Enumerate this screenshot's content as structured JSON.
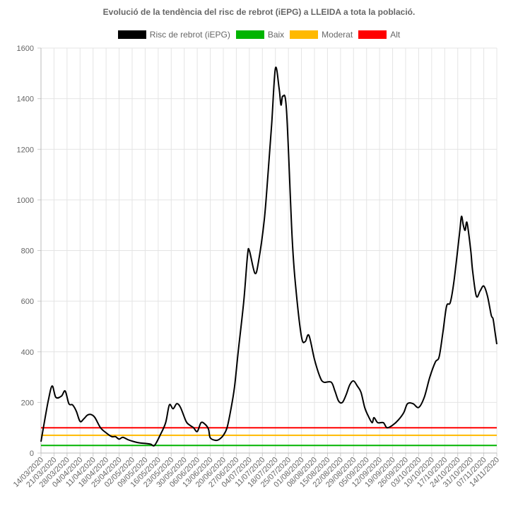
{
  "title": "Evolució de la tendència del risc de rebrot (iEPG) a LLEIDA a tota la població.",
  "legend": [
    {
      "label": "Risc de rebrot (iEPG)",
      "color": "#000000"
    },
    {
      "label": "Baix",
      "color": "#00b400"
    },
    {
      "label": "Moderat",
      "color": "#ffb900"
    },
    {
      "label": "Alt",
      "color": "#ff0000"
    }
  ],
  "chart_data": {
    "type": "line",
    "title": "Evolució de la tendència del risc de rebrot (iEPG) a LLEIDA a tota la població.",
    "xlabel": "",
    "ylabel": "",
    "ylim": [
      0,
      1600
    ],
    "yticks": [
      0,
      200,
      400,
      600,
      800,
      1000,
      1200,
      1400,
      1600
    ],
    "grid": true,
    "legend_position": "top",
    "x_range": [
      "14/03/2020",
      "14/11/2020"
    ],
    "xtick_labels": [
      "14/03/2020",
      "21/03/2020",
      "28/03/2020",
      "04/04/2020",
      "11/04/2020",
      "18/04/2020",
      "25/04/2020",
      "02/05/2020",
      "09/05/2020",
      "16/05/2020",
      "23/05/2020",
      "30/05/2020",
      "06/06/2020",
      "13/06/2020",
      "20/06/2020",
      "27/06/2020",
      "04/07/2020",
      "11/07/2020",
      "18/07/2020",
      "25/07/2020",
      "01/08/2020",
      "08/08/2020",
      "15/08/2020",
      "22/08/2020",
      "29/08/2020",
      "05/09/2020",
      "12/09/2020",
      "19/09/2020",
      "26/09/2020",
      "03/10/2020",
      "10/10/2020",
      "17/10/2020",
      "24/10/2020",
      "31/10/2020",
      "07/11/2020",
      "14/11/2020"
    ],
    "series": [
      {
        "name": "Risc de rebrot (iEPG)",
        "color": "#000000",
        "points": [
          [
            "14/03/2020",
            45
          ],
          [
            "16/03/2020",
            130
          ],
          [
            "18/03/2020",
            210
          ],
          [
            "20/03/2020",
            265
          ],
          [
            "22/03/2020",
            220
          ],
          [
            "25/03/2020",
            225
          ],
          [
            "27/03/2020",
            245
          ],
          [
            "29/03/2020",
            195
          ],
          [
            "31/03/2020",
            190
          ],
          [
            "02/04/2020",
            165
          ],
          [
            "04/04/2020",
            125
          ],
          [
            "06/04/2020",
            135
          ],
          [
            "08/04/2020",
            150
          ],
          [
            "10/04/2020",
            152
          ],
          [
            "12/04/2020",
            140
          ],
          [
            "15/04/2020",
            100
          ],
          [
            "18/04/2020",
            80
          ],
          [
            "21/04/2020",
            65
          ],
          [
            "23/04/2020",
            65
          ],
          [
            "25/04/2020",
            55
          ],
          [
            "27/04/2020",
            62
          ],
          [
            "30/04/2020",
            52
          ],
          [
            "03/05/2020",
            45
          ],
          [
            "06/05/2020",
            40
          ],
          [
            "09/05/2020",
            38
          ],
          [
            "12/05/2020",
            35
          ],
          [
            "14/05/2020",
            30
          ],
          [
            "17/05/2020",
            70
          ],
          [
            "20/05/2020",
            120
          ],
          [
            "22/05/2020",
            190
          ],
          [
            "24/05/2020",
            175
          ],
          [
            "26/05/2020",
            195
          ],
          [
            "28/05/2020",
            180
          ],
          [
            "31/05/2020",
            125
          ],
          [
            "02/06/2020",
            110
          ],
          [
            "04/06/2020",
            100
          ],
          [
            "06/06/2020",
            85
          ],
          [
            "08/06/2020",
            120
          ],
          [
            "10/06/2020",
            115
          ],
          [
            "12/06/2020",
            95
          ],
          [
            "13/06/2020",
            60
          ],
          [
            "16/06/2020",
            50
          ],
          [
            "18/06/2020",
            55
          ],
          [
            "20/06/2020",
            70
          ],
          [
            "22/06/2020",
            100
          ],
          [
            "24/06/2020",
            170
          ],
          [
            "26/06/2020",
            260
          ],
          [
            "28/06/2020",
            400
          ],
          [
            "01/07/2020",
            600
          ],
          [
            "03/07/2020",
            780
          ],
          [
            "04/07/2020",
            800
          ],
          [
            "07/07/2020",
            710
          ],
          [
            "09/07/2020",
            760
          ],
          [
            "12/07/2020",
            920
          ],
          [
            "14/07/2020",
            1100
          ],
          [
            "16/07/2020",
            1300
          ],
          [
            "18/07/2020",
            1520
          ],
          [
            "20/07/2020",
            1440
          ],
          [
            "21/07/2020",
            1375
          ],
          [
            "22/07/2020",
            1410
          ],
          [
            "24/07/2020",
            1350
          ],
          [
            "27/07/2020",
            850
          ],
          [
            "29/07/2020",
            650
          ],
          [
            "01/08/2020",
            460
          ],
          [
            "03/08/2020",
            440
          ],
          [
            "05/08/2020",
            465
          ],
          [
            "08/08/2020",
            370
          ],
          [
            "11/08/2020",
            300
          ],
          [
            "13/08/2020",
            280
          ],
          [
            "17/08/2020",
            280
          ],
          [
            "19/08/2020",
            245
          ],
          [
            "21/08/2020",
            205
          ],
          [
            "23/08/2020",
            200
          ],
          [
            "25/08/2020",
            230
          ],
          [
            "27/08/2020",
            270
          ],
          [
            "29/08/2020",
            285
          ],
          [
            "31/08/2020",
            265
          ],
          [
            "02/09/2020",
            240
          ],
          [
            "04/09/2020",
            180
          ],
          [
            "06/09/2020",
            145
          ],
          [
            "08/09/2020",
            120
          ],
          [
            "09/09/2020",
            140
          ],
          [
            "11/09/2020",
            120
          ],
          [
            "14/09/2020",
            120
          ],
          [
            "16/09/2020",
            100
          ],
          [
            "19/09/2020",
            110
          ],
          [
            "22/09/2020",
            130
          ],
          [
            "25/09/2020",
            160
          ],
          [
            "27/09/2020",
            195
          ],
          [
            "30/09/2020",
            195
          ],
          [
            "03/10/2020",
            180
          ],
          [
            "06/10/2020",
            220
          ],
          [
            "09/10/2020",
            300
          ],
          [
            "12/10/2020",
            360
          ],
          [
            "14/10/2020",
            380
          ],
          [
            "16/10/2020",
            475
          ],
          [
            "18/10/2020",
            580
          ],
          [
            "20/10/2020",
            595
          ],
          [
            "22/10/2020",
            680
          ],
          [
            "25/10/2020",
            870
          ],
          [
            "26/10/2020",
            935
          ],
          [
            "27/10/2020",
            900
          ],
          [
            "28/10/2020",
            880
          ],
          [
            "29/10/2020",
            910
          ],
          [
            "31/10/2020",
            800
          ],
          [
            "01/11/2020",
            720
          ],
          [
            "03/11/2020",
            620
          ],
          [
            "05/11/2020",
            640
          ],
          [
            "07/11/2020",
            660
          ],
          [
            "09/11/2020",
            620
          ],
          [
            "11/11/2020",
            545
          ],
          [
            "12/11/2020",
            530
          ],
          [
            "13/11/2020",
            480
          ],
          [
            "14/11/2020",
            430
          ]
        ]
      },
      {
        "name": "Baix",
        "color": "#00b400",
        "constant": 30
      },
      {
        "name": "Moderat",
        "color": "#ffb900",
        "constant": 70
      },
      {
        "name": "Alt",
        "color": "#ff0000",
        "constant": 100
      }
    ]
  }
}
